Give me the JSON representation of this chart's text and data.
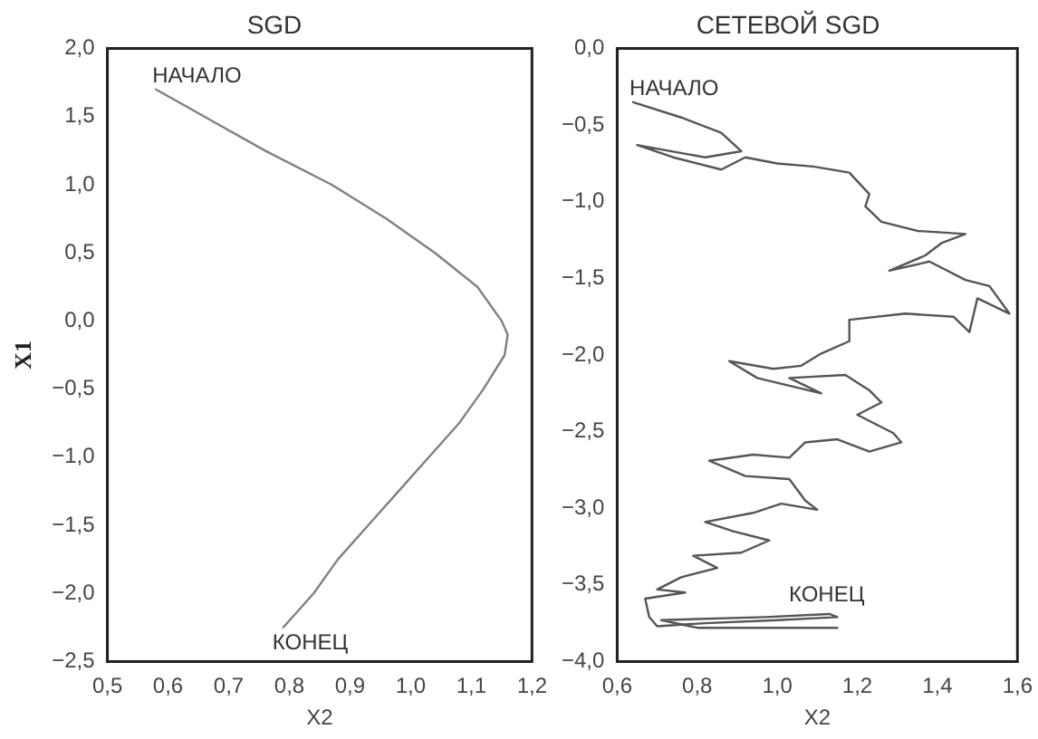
{
  "chart_data": [
    {
      "type": "line",
      "title": "SGD",
      "xlabel": "X2",
      "ylabel": "X1",
      "xlim": [
        0.5,
        1.2
      ],
      "ylim": [
        -2.5,
        2.0
      ],
      "xticks": [
        {
          "value": 0.5,
          "label": "0,5"
        },
        {
          "value": 0.6,
          "label": "0,6"
        },
        {
          "value": 0.7,
          "label": "0,7"
        },
        {
          "value": 0.8,
          "label": "0,8"
        },
        {
          "value": 0.9,
          "label": "0,9"
        },
        {
          "value": 1.0,
          "label": "1,0"
        },
        {
          "value": 1.1,
          "label": "1,1"
        },
        {
          "value": 1.2,
          "label": "1,2"
        }
      ],
      "yticks": [
        {
          "value": -2.5,
          "label": "−2,5"
        },
        {
          "value": -2.0,
          "label": "−2,0"
        },
        {
          "value": -1.5,
          "label": "−1,5"
        },
        {
          "value": -1.0,
          "label": "−1,0"
        },
        {
          "value": -0.5,
          "label": "−0,5"
        },
        {
          "value": 0,
          "label": "0,0"
        },
        {
          "value": 0.5,
          "label": "0,5"
        },
        {
          "value": 1.0,
          "label": "1,0"
        },
        {
          "value": 1.5,
          "label": "1,5"
        },
        {
          "value": 2.0,
          "label": "2,0"
        }
      ],
      "series": [
        {
          "color": "#808080",
          "x": [
            0.58,
            0.66,
            0.76,
            0.87,
            0.96,
            1.04,
            1.11,
            1.15,
            1.16,
            1.155,
            1.12,
            1.08,
            1.03,
            0.98,
            0.93,
            0.88,
            0.84,
            0.79
          ],
          "values": [
            1.7,
            1.5,
            1.25,
            1.0,
            0.75,
            0.5,
            0.25,
            0,
            -0.1,
            -0.25,
            -0.5,
            -0.75,
            -1.0,
            -1.25,
            -1.5,
            -1.75,
            -2.0,
            -2.25
          ]
        }
      ],
      "annotations": [
        {
          "text": "НАЧАЛО",
          "x": 0.58,
          "y": 1.7
        },
        {
          "text": "КОНЕЦ",
          "x": 0.79,
          "y": -2.25
        }
      ]
    },
    {
      "type": "line",
      "title": "СЕТЕВОЙ SGD",
      "xlabel": "X2",
      "xlim": [
        0.6,
        1.6
      ],
      "ylim": [
        -4.0,
        0.0
      ],
      "xticks": [
        {
          "value": 0.6,
          "label": "0,6"
        },
        {
          "value": 0.8,
          "label": "0,8"
        },
        {
          "value": 1.0,
          "label": "1,0"
        },
        {
          "value": 1.2,
          "label": "1,2"
        },
        {
          "value": 1.4,
          "label": "1,4"
        },
        {
          "value": 1.6,
          "label": "1,6"
        }
      ],
      "yticks": [
        {
          "value": -4.0,
          "label": "−4,0"
        },
        {
          "value": -3.5,
          "label": "−3,5"
        },
        {
          "value": -3.0,
          "label": "−3,0"
        },
        {
          "value": -2.5,
          "label": "−2,5"
        },
        {
          "value": -2.0,
          "label": "−2,0"
        },
        {
          "value": -1.5,
          "label": "−1,5"
        },
        {
          "value": -1.0,
          "label": "−1,0"
        },
        {
          "value": -0.5,
          "label": "−0,5"
        },
        {
          "value": 0,
          "label": "0,0"
        }
      ],
      "series": [
        {
          "color": "#555555",
          "x": [
            0.64,
            0.76,
            0.86,
            0.91,
            0.82,
            0.65,
            0.74,
            0.86,
            0.92,
            1.0,
            1.09,
            1.18,
            1.23,
            1.22,
            1.26,
            1.35,
            1.47,
            1.41,
            1.37,
            1.28,
            1.38,
            1.47,
            1.53,
            1.58,
            1.5,
            1.48,
            1.44,
            1.32,
            1.18,
            1.18,
            1.11,
            1.06,
            0.99,
            0.88,
            0.95,
            1.11,
            1.03,
            1.17,
            1.23,
            1.26,
            1.2,
            1.29,
            1.31,
            1.23,
            1.15,
            1.07,
            1.03,
            0.94,
            0.83,
            0.92,
            1.03,
            1.07,
            1.1,
            1.01,
            0.94,
            0.82,
            0.89,
            0.98,
            0.91,
            0.79,
            0.85,
            0.76,
            0.7,
            0.77,
            0.67,
            0.68,
            0.7,
            0.82,
            1.0,
            1.15,
            1.13,
            0.97,
            0.71,
            0.8,
            1.15
          ],
          "values": [
            -0.35,
            -0.45,
            -0.55,
            -0.67,
            -0.71,
            -0.63,
            -0.71,
            -0.79,
            -0.71,
            -0.75,
            -0.77,
            -0.81,
            -0.95,
            -1.03,
            -1.13,
            -1.19,
            -1.21,
            -1.27,
            -1.35,
            -1.45,
            -1.39,
            -1.51,
            -1.55,
            -1.73,
            -1.63,
            -1.85,
            -1.75,
            -1.73,
            -1.77,
            -1.91,
            -1.99,
            -2.07,
            -2.09,
            -2.04,
            -2.15,
            -2.25,
            -2.15,
            -2.13,
            -2.23,
            -2.31,
            -2.39,
            -2.51,
            -2.57,
            -2.63,
            -2.55,
            -2.57,
            -2.67,
            -2.65,
            -2.69,
            -2.79,
            -2.81,
            -2.95,
            -3.01,
            -2.97,
            -3.03,
            -3.09,
            -3.15,
            -3.21,
            -3.29,
            -3.31,
            -3.39,
            -3.45,
            -3.53,
            -3.55,
            -3.59,
            -3.71,
            -3.77,
            -3.75,
            -3.73,
            -3.71,
            -3.69,
            -3.71,
            -3.73,
            -3.78,
            -3.78
          ]
        }
      ],
      "annotations": [
        {
          "text": "НАЧАЛО",
          "x": 0.64,
          "y": -0.35
        },
        {
          "text": "КОНЕЦ",
          "x": 1.15,
          "y": -3.78
        }
      ]
    }
  ]
}
